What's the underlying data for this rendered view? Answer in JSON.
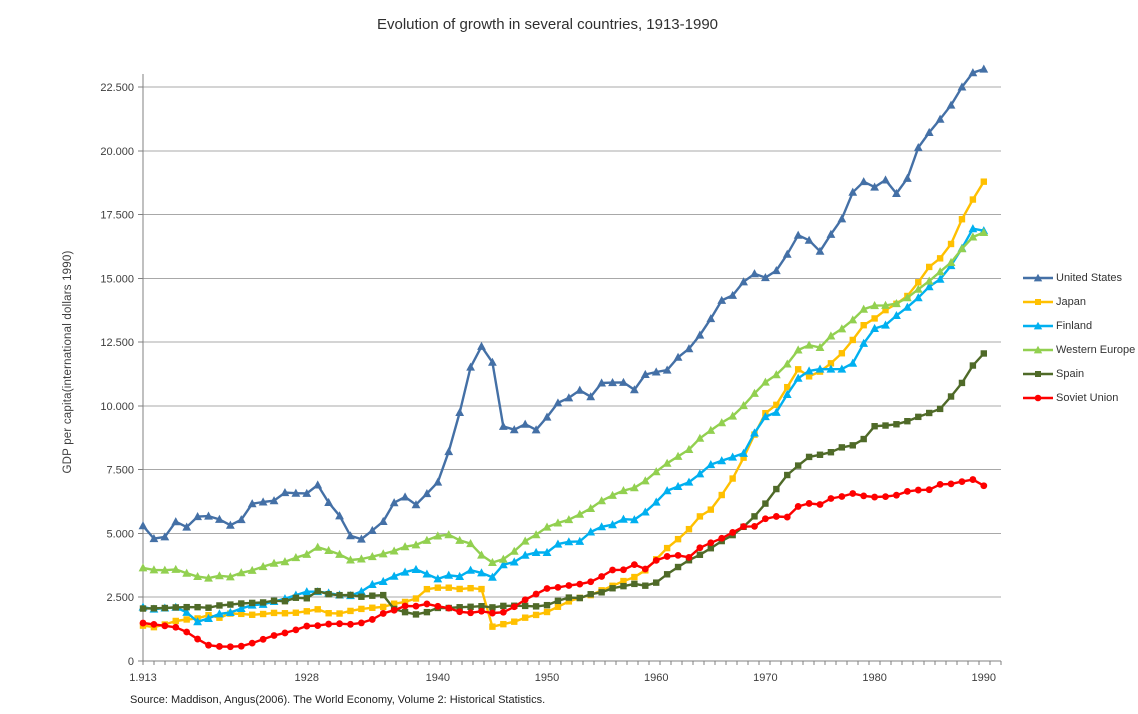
{
  "chart": {
    "title": "Evolution of growth in several countries, 1913-1990",
    "y_axis_title": "GDP per capita(international dollars 1990)",
    "source": "Source: Maddison, Angus(2006). The World Economy, Volume 2: Historical Statistics.",
    "x_tick_labels": [
      {
        "label": "1.913",
        "year": 1913
      },
      {
        "label": "1928",
        "year": 1928
      },
      {
        "label": "1940",
        "year": 1940
      },
      {
        "label": "1950",
        "year": 1950
      },
      {
        "label": "1960",
        "year": 1960
      },
      {
        "label": "1970",
        "year": 1970
      },
      {
        "label": "1980",
        "year": 1980
      },
      {
        "label": "1990",
        "year": 1990
      }
    ],
    "y_tick_labels": [
      {
        "label": "0",
        "value": 0
      },
      {
        "label": "2.500",
        "value": 2500
      },
      {
        "label": "5.000",
        "value": 5000
      },
      {
        "label": "7.500",
        "value": 7500
      },
      {
        "label": "10.000",
        "value": 10000
      },
      {
        "label": "12.500",
        "value": 12500
      },
      {
        "label": "15.000",
        "value": 15000
      },
      {
        "label": "17.500",
        "value": 17500
      },
      {
        "label": "20.000",
        "value": 20000
      },
      {
        "label": "22.500",
        "value": 22500
      }
    ],
    "colors": {
      "gridline": "#a8a8a8",
      "axis": "#808080",
      "tick_label": "#3d3d3d",
      "title_text": "#2f2f2f"
    }
  },
  "chart_data": {
    "type": "line",
    "title": "Evolution of growth in several countries, 1913-1990",
    "xlabel": "",
    "ylabel": "GDP per capita(international dollars 1990)",
    "x_range": [
      1913,
      1990
    ],
    "ylim": [
      0,
      22500
    ],
    "grid": true,
    "legend_position": "right",
    "x": [
      1913,
      1914,
      1915,
      1916,
      1917,
      1918,
      1919,
      1920,
      1921,
      1922,
      1923,
      1924,
      1925,
      1926,
      1927,
      1928,
      1929,
      1930,
      1931,
      1932,
      1933,
      1934,
      1935,
      1936,
      1937,
      1938,
      1939,
      1940,
      1941,
      1942,
      1943,
      1944,
      1945,
      1946,
      1947,
      1948,
      1949,
      1950,
      1951,
      1952,
      1953,
      1954,
      1955,
      1956,
      1957,
      1958,
      1959,
      1960,
      1961,
      1962,
      1963,
      1964,
      1965,
      1966,
      1967,
      1968,
      1969,
      1970,
      1971,
      1972,
      1973,
      1974,
      1975,
      1976,
      1977,
      1978,
      1979,
      1980,
      1981,
      1982,
      1983,
      1984,
      1985,
      1986,
      1987,
      1988,
      1989,
      1990
    ],
    "series": [
      {
        "id": "united-states",
        "name": "United States",
        "color": "#4470a6",
        "marker": "triangle",
        "values": [
          5301,
          4799,
          4864,
          5459,
          5248,
          5659,
          5680,
          5552,
          5323,
          5540,
          6164,
          6233,
          6282,
          6602,
          6576,
          6569,
          6899,
          6213,
          5691,
          4908,
          4777,
          5114,
          5467,
          6204,
          6430,
          6126,
          6561,
          7010,
          8206,
          9741,
          11518,
          12333,
          11709,
          9197,
          9065,
          9281,
          9062,
          9561,
          10116,
          10316,
          10613,
          10359,
          10897,
          10914,
          10920,
          10631,
          11230,
          11328,
          11402,
          11905,
          12242,
          12773,
          13419,
          14134,
          14330,
          14863,
          15179,
          15030,
          15304,
          15944,
          16689,
          16491,
          16060,
          16725,
          17332,
          18373,
          18789,
          18577,
          18856,
          18325,
          18920,
          20123,
          20717,
          21236,
          21788,
          22499,
          23059,
          23201
        ]
      },
      {
        "id": "japan",
        "name": "Japan",
        "color": "#ffc000",
        "marker": "square",
        "values": [
          1387,
          1327,
          1430,
          1569,
          1628,
          1668,
          1795,
          1696,
          1860,
          1848,
          1812,
          1842,
          1885,
          1872,
          1892,
          1949,
          2026,
          1873,
          1861,
          1963,
          2042,
          2087,
          2120,
          2244,
          2315,
          2449,
          2816,
          2874,
          2873,
          2824,
          2855,
          2819,
          1346,
          1444,
          1541,
          1698,
          1806,
          1921,
          2126,
          2336,
          2474,
          2582,
          2771,
          2948,
          3133,
          3290,
          3554,
          3986,
          4426,
          4776,
          5168,
          5668,
          5934,
          6506,
          7152,
          7971,
          8874,
          9714,
          10041,
          10734,
          11434,
          11159,
          11344,
          11669,
          12063,
          12585,
          13163,
          13428,
          13754,
          14001,
          14308,
          14845,
          15447,
          15784,
          16347,
          17317,
          18089,
          18789
        ]
      },
      {
        "id": "finland",
        "name": "Finland",
        "color": "#00b0f0",
        "marker": "triangle",
        "values": [
          2111,
          2032,
          2076,
          2105,
          1907,
          1538,
          1668,
          1846,
          1900,
          2057,
          2188,
          2222,
          2331,
          2442,
          2582,
          2717,
          2717,
          2666,
          2587,
          2562,
          2723,
          3000,
          3117,
          3324,
          3486,
          3589,
          3408,
          3220,
          3361,
          3313,
          3558,
          3453,
          3284,
          3774,
          3880,
          4147,
          4254,
          4253,
          4583,
          4672,
          4688,
          5056,
          5260,
          5342,
          5558,
          5539,
          5839,
          6230,
          6674,
          6841,
          7010,
          7334,
          7700,
          7851,
          7992,
          8140,
          8938,
          9577,
          9747,
          10447,
          11085,
          11370,
          11441,
          11439,
          11442,
          11672,
          12450,
          13033,
          13168,
          13541,
          13868,
          14239,
          14672,
          14963,
          15500,
          16180,
          16946,
          16866
        ]
      },
      {
        "id": "western-europe",
        "name": "Western Europe",
        "color": "#92d050",
        "marker": "triangle",
        "values": [
          3650,
          3571,
          3560,
          3590,
          3440,
          3310,
          3250,
          3340,
          3300,
          3458,
          3550,
          3700,
          3830,
          3890,
          4051,
          4182,
          4460,
          4330,
          4180,
          3960,
          4000,
          4090,
          4200,
          4310,
          4480,
          4550,
          4730,
          4900,
          4950,
          4730,
          4600,
          4150,
          3860,
          3990,
          4300,
          4700,
          4950,
          5250,
          5410,
          5540,
          5750,
          5980,
          6280,
          6490,
          6680,
          6790,
          7060,
          7420,
          7750,
          8020,
          8290,
          8730,
          9040,
          9340,
          9600,
          10010,
          10490,
          10930,
          11220,
          11640,
          12190,
          12380,
          12290,
          12740,
          13020,
          13370,
          13790,
          13930,
          13940,
          14010,
          14240,
          14570,
          14890,
          15260,
          15620,
          16160,
          16620,
          16797
        ]
      },
      {
        "id": "spain",
        "name": "Spain",
        "color": "#4f6a28",
        "marker": "square",
        "values": [
          2056,
          2065,
          2077,
          2100,
          2111,
          2110,
          2089,
          2177,
          2212,
          2254,
          2277,
          2295,
          2362,
          2344,
          2479,
          2459,
          2739,
          2620,
          2581,
          2589,
          2519,
          2560,
          2583,
          2040,
          1915,
          1826,
          1915,
          2080,
          2078,
          2107,
          2125,
          2148,
          2102,
          2161,
          2165,
          2160,
          2142,
          2189,
          2358,
          2486,
          2467,
          2617,
          2692,
          2852,
          2934,
          3023,
          2952,
          3072,
          3399,
          3684,
          3950,
          4164,
          4421,
          4701,
          4935,
          5260,
          5670,
          6170,
          6740,
          7290,
          7661,
          8000,
          8084,
          8184,
          8374,
          8454,
          8700,
          9203,
          9230,
          9280,
          9400,
          9570,
          9722,
          9882,
          10368,
          10900,
          11582,
          12055
        ]
      },
      {
        "id": "soviet-union",
        "name": "Soviet Union",
        "color": "#fe0000",
        "marker": "circle",
        "values": [
          1488,
          1436,
          1379,
          1322,
          1136,
          860,
          620,
          570,
          560,
          580,
          700,
          850,
          1000,
          1100,
          1220,
          1370,
          1386,
          1448,
          1462,
          1439,
          1493,
          1630,
          1864,
          1991,
          2156,
          2150,
          2237,
          2144,
          2073,
          1930,
          1890,
          1950,
          1880,
          1910,
          2126,
          2402,
          2623,
          2841,
          2886,
          2960,
          3013,
          3106,
          3313,
          3566,
          3576,
          3777,
          3606,
          3945,
          4098,
          4140,
          4063,
          4439,
          4634,
          4811,
          5039,
          5270,
          5276,
          5575,
          5666,
          5643,
          6059,
          6176,
          6136,
          6371,
          6448,
          6565,
          6472,
          6427,
          6443,
          6500,
          6650,
          6700,
          6715,
          6924,
          6943,
          7032,
          7112,
          6871
        ]
      }
    ]
  }
}
